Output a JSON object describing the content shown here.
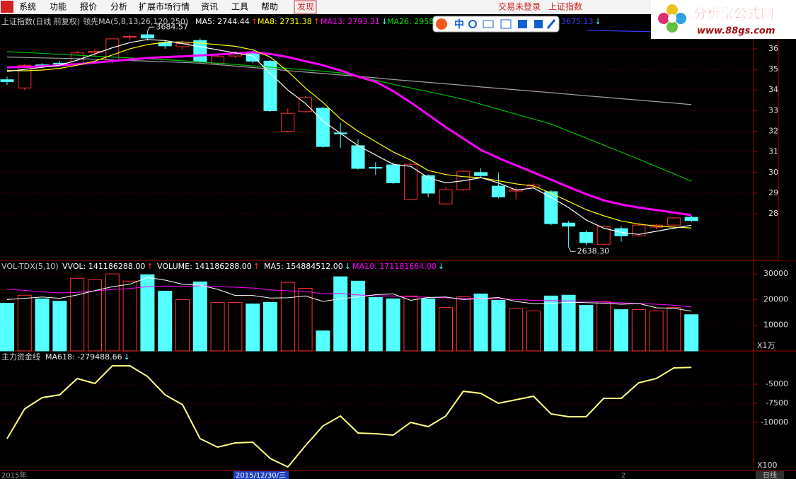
{
  "menu": {
    "items": [
      "系统",
      "功能",
      "报价",
      "分析",
      "扩展市场行情",
      "资讯",
      "工具",
      "帮助",
      "发现"
    ],
    "status": "交易未登录",
    "index_name": "上证指数"
  },
  "logo": {
    "title": "分析家公式网",
    "url": "www.88gs.com"
  },
  "ime_toolbar": {
    "label": "中"
  },
  "chart_data": [
    {
      "type": "candlestick",
      "title": "上证指数(日线 前复权)",
      "subtitle": "领先MA(5,8,13,26,120,250)",
      "legend": [
        {
          "label": "MA5: 2744.44",
          "arrow": "↑",
          "color": "#ffffff",
          "arrow_color": "#ff3232"
        },
        {
          "label": "MA8: 2731.38",
          "arrow": "↑",
          "color": "#ffff00",
          "arrow_color": "#ff3232"
        },
        {
          "label": "MA13: 2793.31",
          "arrow": "↓",
          "color": "#ff00ff",
          "arrow_color": "#54ffff"
        },
        {
          "label": "MA26: 2958",
          "color": "#00e000"
        },
        {
          "label": "3675.13",
          "arrow": "↓",
          "color": "#3a3aff",
          "arrow_color": "#54ffff"
        }
      ],
      "up_color": "#ff3232",
      "down_color": "#54ffff",
      "open": [
        3450,
        3410,
        3522,
        3530,
        3528,
        3582,
        3540,
        3655,
        3668,
        3630,
        3610,
        3640,
        3530,
        3565,
        3580,
        3540,
        3200,
        3295,
        3312,
        3192,
        3130,
        3025,
        3037,
        2870,
        2985,
        2848,
        2917,
        3000,
        2934,
        2910,
        2930,
        2907,
        2755,
        2710,
        2652,
        2728,
        2693,
        2735,
        2745,
        2783
      ],
      "high": [
        3465,
        3525,
        3530,
        3540,
        3590,
        3600,
        3650,
        3670,
        3684.57,
        3640,
        3640,
        3650,
        3575,
        3590,
        3590,
        3545,
        3310,
        3370,
        3320,
        3240,
        3160,
        3050,
        3050,
        3045,
        2990,
        2930,
        3010,
        3020,
        3000,
        2930,
        2950,
        2915,
        2765,
        2720,
        2745,
        2740,
        2755,
        2750,
        2785,
        2790
      ],
      "low": [
        3425,
        3400,
        3505,
        3520,
        3520,
        3560,
        3530,
        3640,
        3640,
        3600,
        3595,
        3530,
        3520,
        3555,
        3530,
        3295,
        3195,
        3290,
        3120,
        3120,
        3015,
        2990,
        2945,
        2865,
        2880,
        2845,
        2910,
        2975,
        2875,
        2870,
        2925,
        2745,
        2638.3,
        2650,
        2648,
        2665,
        2690,
        2725,
        2738,
        2760
      ],
      "close": [
        3440,
        3520,
        3515,
        3527,
        3580,
        3588,
        3648,
        3660,
        3652,
        3614,
        3625,
        3538,
        3562,
        3580,
        3540,
        3300,
        3287,
        3363,
        3126,
        3188,
        3020,
        3021,
        2950,
        3040,
        2900,
        2917,
        3006,
        2985,
        2882,
        2917,
        2940,
        2752,
        2740,
        2660,
        2738,
        2693,
        2745,
        2745,
        2780,
        2767
      ],
      "lines": [
        {
          "color": "#a0a0a0",
          "values": [
            3560,
            3558,
            3556,
            3554,
            3552,
            3549,
            3546,
            3543,
            3540,
            3537,
            3534,
            3530,
            3523,
            3516,
            3509,
            3502,
            3494,
            3487,
            3480,
            3473,
            3466,
            3459,
            3451,
            3444,
            3437,
            3430,
            3423,
            3415,
            3408,
            3401,
            3394,
            3387,
            3380,
            3372,
            3365,
            3358,
            3351,
            3344,
            3337,
            3329
          ]
        },
        {
          "color": "#00c000",
          "values": [
            3586,
            3582,
            3578,
            3573,
            3569,
            3564,
            3560,
            3556,
            3551,
            3547,
            3542,
            3536,
            3530,
            3524,
            3517,
            3511,
            3505,
            3498,
            3491,
            3483,
            3465,
            3447,
            3428,
            3410,
            3392,
            3374,
            3355,
            3331,
            3307,
            3283,
            3259,
            3235,
            3201,
            3167,
            3133,
            3099,
            3065,
            3029,
            2994,
            2958
          ]
        },
        {
          "color": "#3a3aff",
          "values": [
            null,
            null,
            null,
            null,
            null,
            null,
            null,
            null,
            null,
            null,
            null,
            null,
            null,
            null,
            null,
            null,
            null,
            null,
            null,
            null,
            null,
            null,
            null,
            null,
            null,
            null,
            null,
            null,
            null,
            null,
            null,
            null,
            null,
            3690,
            3688,
            3686,
            3684,
            3682,
            3679,
            3675.13
          ]
        },
        {
          "color": "#ff00ff",
          "values": [
            3510,
            3512,
            3515,
            3520,
            3525,
            3533,
            3540,
            3548,
            3555,
            3560,
            3563,
            3568,
            3572,
            3578,
            3583,
            3575,
            3560,
            3540,
            3520,
            3495,
            3465,
            3440,
            3395,
            3340,
            3280,
            3220,
            3165,
            3110,
            3070,
            3035,
            3000,
            2965,
            2930,
            2895,
            2865,
            2845,
            2830,
            2818,
            2806,
            2793.31
          ]
        },
        {
          "color": "#ffff00",
          "values": [
            3495,
            3493,
            3497,
            3505,
            3520,
            3540,
            3570,
            3600,
            3620,
            3632,
            3633,
            3628,
            3620,
            3612,
            3595,
            3560,
            3490,
            3410,
            3340,
            3260,
            3200,
            3150,
            3100,
            3060,
            3010,
            2990,
            2980,
            2975,
            2960,
            2945,
            2935,
            2900,
            2860,
            2820,
            2790,
            2765,
            2750,
            2740,
            2735,
            2731.38
          ]
        },
        {
          "color": "#ffffff",
          "values": [
            3490,
            3500,
            3510,
            3520,
            3545,
            3575,
            3605,
            3630,
            3645,
            3640,
            3625,
            3610,
            3595,
            3580,
            3565,
            3480,
            3400,
            3335,
            3250,
            3190,
            3130,
            3085,
            3040,
            3030,
            2975,
            2950,
            2960,
            2975,
            2950,
            2915,
            2925,
            2880,
            2830,
            2770,
            2730,
            2710,
            2700,
            2715,
            2730,
            2744.44
          ]
        }
      ],
      "annotations": [
        {
          "label": "3684.57",
          "candle": 8,
          "field": "high"
        },
        {
          "label": "2638.30",
          "candle": 32,
          "field": "low"
        }
      ],
      "ylim": [
        2574,
        3761
      ],
      "yticks": [
        2800,
        2900,
        3000,
        3100,
        3200,
        3300,
        3400,
        3500,
        3600
      ],
      "grid": true
    },
    {
      "type": "bar",
      "title": "VOL-TDX(5,10)",
      "legend": [
        {
          "label": "VVOL: 141186288.00",
          "arrow": "↑",
          "color": "#ffffff",
          "arrow_color": "#ff3232"
        },
        {
          "label": "VOLUME: 141186288.00",
          "arrow": "↑",
          "color": "#ffffff",
          "arrow_color": "#ff3232"
        },
        {
          "label": "MA5: 154884512.00",
          "arrow": "↓",
          "color": "#ffffff",
          "arrow_color": "#54ffff"
        },
        {
          "label": "MA10: 171181664.00",
          "arrow": "↓",
          "color": "#ff00ff",
          "arrow_color": "#54ffff"
        }
      ],
      "up_color": "#ff3232",
      "down_color": "#54ffff",
      "values": [
        18600,
        21700,
        20300,
        19400,
        28300,
        27800,
        30000,
        27200,
        29700,
        23300,
        20000,
        26900,
        18900,
        18900,
        18300,
        18900,
        26700,
        24400,
        7800,
        28900,
        27200,
        20800,
        20300,
        21400,
        20300,
        16900,
        21100,
        22200,
        19700,
        16400,
        15600,
        21400,
        21700,
        17800,
        19200,
        16100,
        16100,
        15600,
        16900,
        14118.6
      ],
      "lines": [
        {
          "color": "#ff00ff",
          "values": [
            24000,
            23600,
            23000,
            22600,
            22800,
            23400,
            23900,
            24300,
            25000,
            25300,
            25000,
            25400,
            25100,
            24800,
            24500,
            23800,
            23400,
            23300,
            22200,
            22400,
            21800,
            21500,
            21400,
            21100,
            20900,
            20700,
            20400,
            20500,
            20300,
            20000,
            19700,
            19600,
            19500,
            19400,
            19000,
            18700,
            18500,
            18200,
            17800,
            17118.17
          ]
        },
        {
          "color": "#ffffff",
          "values": [
            20000,
            20500,
            21000,
            20500,
            21800,
            23500,
            25000,
            26000,
            28600,
            27600,
            26000,
            25600,
            24000,
            21600,
            21600,
            20600,
            20700,
            21400,
            19300,
            20300,
            21000,
            21900,
            22200,
            19700,
            20800,
            21000,
            20000,
            20400,
            20800,
            19300,
            18400,
            18500,
            19000,
            18800,
            18600,
            18200,
            18500,
            16800,
            16600,
            15488.45
          ]
        }
      ],
      "ylim": [
        0,
        35000
      ],
      "yticks": [
        10000,
        20000,
        30000
      ],
      "unit": "X1万",
      "grid": true
    },
    {
      "type": "line",
      "title": "主力资金线",
      "legend": [
        {
          "label": "MA618: -279488.66",
          "arrow": "↓",
          "color": "#e8e8e8",
          "arrow_color": "#54ffff"
        }
      ],
      "color": "#ffff80",
      "values": [
        -12130,
        -8241,
        -6759,
        -6389,
        -4259,
        -4907,
        -2592,
        -2592,
        -3981,
        -6389,
        -7685,
        -12130,
        -13241,
        -12686,
        -12593,
        -14723,
        -15834,
        -13056,
        -10463,
        -9167,
        -11389,
        -11482,
        -11667,
        -10000,
        -10556,
        -9167,
        -5926,
        -6204,
        -7500,
        -7037,
        -6574,
        -8889,
        -9259,
        -9259,
        -6852,
        -6852,
        -4815,
        -4259,
        -2870,
        -2794.89
      ],
      "ylim": [
        -16300,
        -740
      ],
      "yticks": [
        -10000,
        -7500,
        -5000
      ],
      "unit": "X100",
      "grid": true
    }
  ],
  "timeline": {
    "start": "2015年",
    "cursor": "2015/12/30/三",
    "mark": "2",
    "period": "日线"
  }
}
